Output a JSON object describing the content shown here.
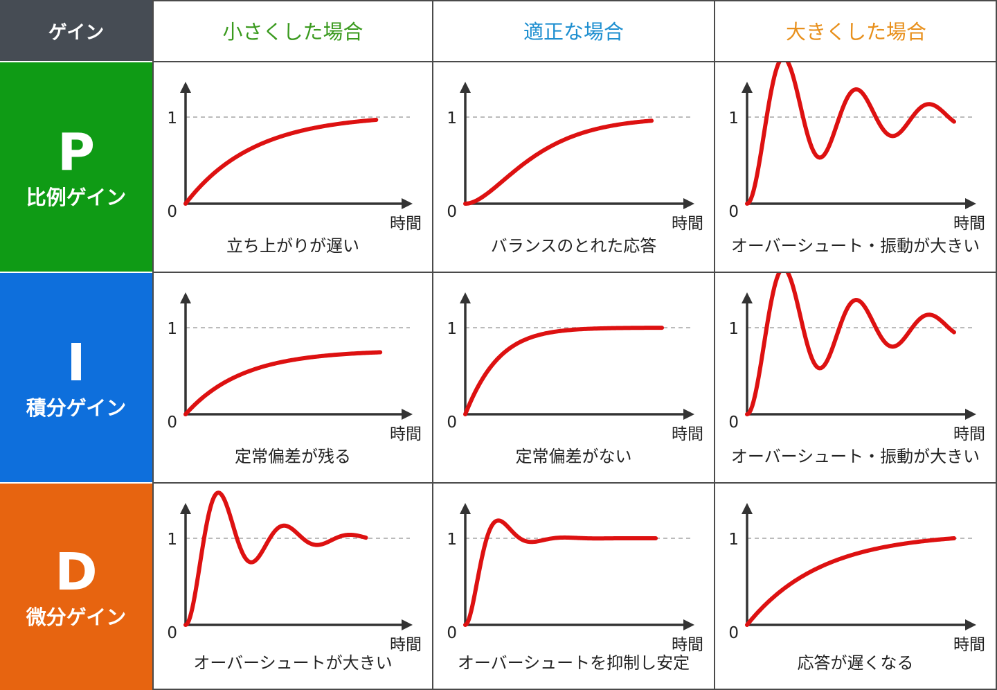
{
  "header": {
    "gain_label": "ゲイン",
    "columns": [
      {
        "label": "小さくした場合",
        "color": "#3a9a1e"
      },
      {
        "label": "適正な場合",
        "color": "#1e8fd0"
      },
      {
        "label": "大きくした場合",
        "color": "#e8901c"
      }
    ]
  },
  "rows": [
    {
      "letter": "P",
      "name": "比例ゲイン",
      "color": "#0f9b15"
    },
    {
      "letter": "I",
      "name": "積分ゲイン",
      "color": "#0e6fdc"
    },
    {
      "letter": "D",
      "name": "微分ゲイン",
      "color": "#e76410"
    }
  ],
  "axis": {
    "y_one": "1",
    "y_zero": "0",
    "x_label": "時間"
  },
  "colors": {
    "curve": "#dd1111",
    "reference": "#bbbbbb",
    "axis": "#333333",
    "grid": "#4a4a4a"
  },
  "cells": [
    [
      {
        "caption": "立ち上がりが遅い",
        "response": "slow_rise"
      },
      {
        "caption": "バランスのとれた応答",
        "response": "balanced"
      },
      {
        "caption": "オーバーシュート・振動が大きい",
        "response": "large_oscillation"
      }
    ],
    [
      {
        "caption": "定常偏差が残る",
        "response": "steady_state_error"
      },
      {
        "caption": "定常偏差がない",
        "response": "no_steady_state_error"
      },
      {
        "caption": "オーバーシュート・振動が大きい",
        "response": "large_oscillation"
      }
    ],
    [
      {
        "caption": "オーバーシュートが大きい",
        "response": "large_overshoot"
      },
      {
        "caption": "オーバーシュートを抑制し安定",
        "response": "overshoot_suppressed"
      },
      {
        "caption": "応答が遅くなる",
        "response": "slow_response"
      }
    ]
  ]
}
